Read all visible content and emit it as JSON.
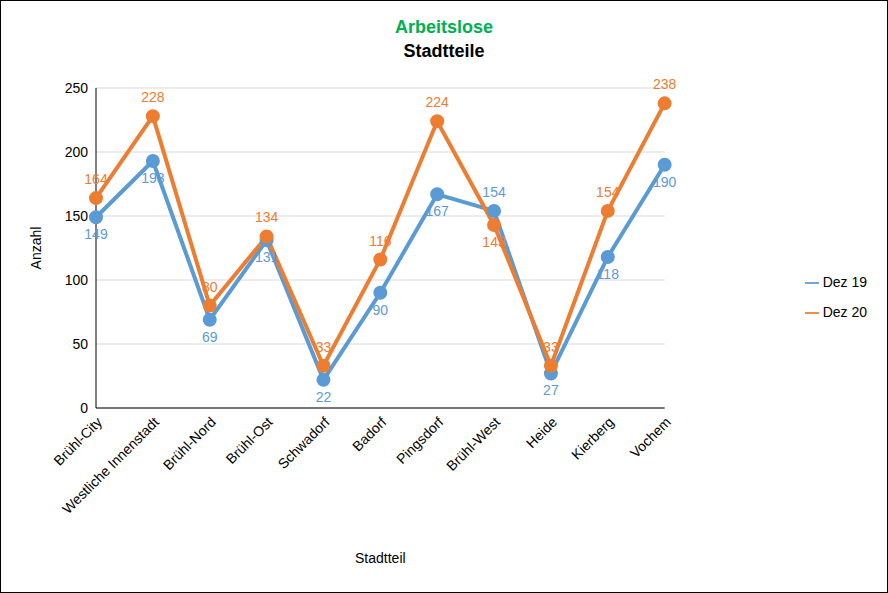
{
  "chart_data": {
    "type": "line",
    "title": "Arbeitslose",
    "subtitle": "Stadtteile",
    "x_label": "Stadtteil",
    "y_label": "Anzahl",
    "categories": [
      "Brühl-City",
      "Westliche Innenstadt",
      "Brühl-Nord",
      "Brühl-Ost",
      "Schwadorf",
      "Badorf",
      "Pingsdorf",
      "Brühl-West",
      "Heide",
      "Kierberg",
      "Vochem"
    ],
    "series": [
      {
        "name": "Dez 19",
        "color": "#5B9BD5",
        "values": [
          149,
          193,
          69,
          131,
          22,
          90,
          167,
          154,
          27,
          118,
          190
        ]
      },
      {
        "name": "Dez 20",
        "color": "#ED7D31",
        "values": [
          164,
          228,
          80,
          134,
          33,
          116,
          224,
          143,
          33,
          154,
          238
        ]
      }
    ],
    "ylim": [
      0,
      250
    ],
    "yticks": [
      0,
      50,
      100,
      150,
      200,
      250
    ],
    "grid": true,
    "legend": "right",
    "data_labels": true,
    "marker": "circle"
  }
}
